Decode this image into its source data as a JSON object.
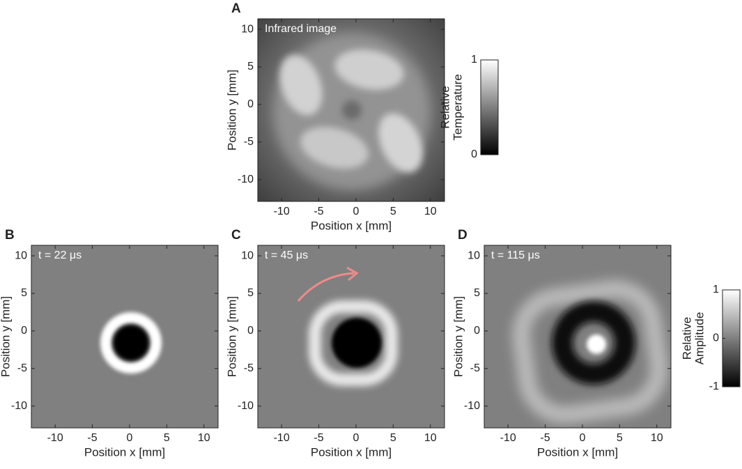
{
  "chart_data": [
    {
      "type": "image",
      "panel": "A",
      "annotation": "Infrared image",
      "xlabel": "Position x [mm]",
      "ylabel": "Position y [mm]",
      "xlim": [
        -13.2,
        11.9
      ],
      "ylim": [
        -12.9,
        11.4
      ],
      "xticks": [
        -10,
        -5,
        0,
        5,
        10
      ],
      "yticks": [
        -10,
        -5,
        0,
        5,
        10
      ],
      "colorbar": {
        "label": [
          "Relative",
          "Temperature"
        ],
        "lim": [
          0,
          1
        ],
        "ticks": [
          0,
          1
        ]
      }
    },
    {
      "type": "image",
      "panel": "B",
      "annotation": "t = 22 μs",
      "xlabel": "Position x [mm]",
      "ylabel": "Position y [mm]",
      "xlim": [
        -13.2,
        11.9
      ],
      "ylim": [
        -12.9,
        11.4
      ],
      "xticks": [
        -10,
        -5,
        0,
        5,
        10
      ],
      "yticks": [
        -10,
        -5,
        0,
        5,
        10
      ]
    },
    {
      "type": "image",
      "panel": "C",
      "annotation": "t = 45 μs",
      "xlabel": "Position x [mm]",
      "ylabel": "Position y [mm]",
      "xlim": [
        -13.2,
        11.9
      ],
      "ylim": [
        -12.9,
        11.4
      ],
      "xticks": [
        -10,
        -5,
        0,
        5,
        10
      ],
      "yticks": [
        -10,
        -5,
        0,
        5,
        10
      ]
    },
    {
      "type": "image",
      "panel": "D",
      "annotation": "t = 115 μs",
      "xlabel": "Position x [mm]",
      "ylabel": "Position y [mm]",
      "xlim": [
        -13.2,
        11.9
      ],
      "ylim": [
        -12.9,
        11.4
      ],
      "xticks": [
        -10,
        -5,
        0,
        5,
        10
      ],
      "yticks": [
        -10,
        -5,
        0,
        5,
        10
      ],
      "colorbar": {
        "label": [
          "Relative",
          "Amplitude"
        ],
        "lim": [
          -1,
          1
        ],
        "ticks": [
          -1,
          0,
          1
        ]
      }
    }
  ]
}
